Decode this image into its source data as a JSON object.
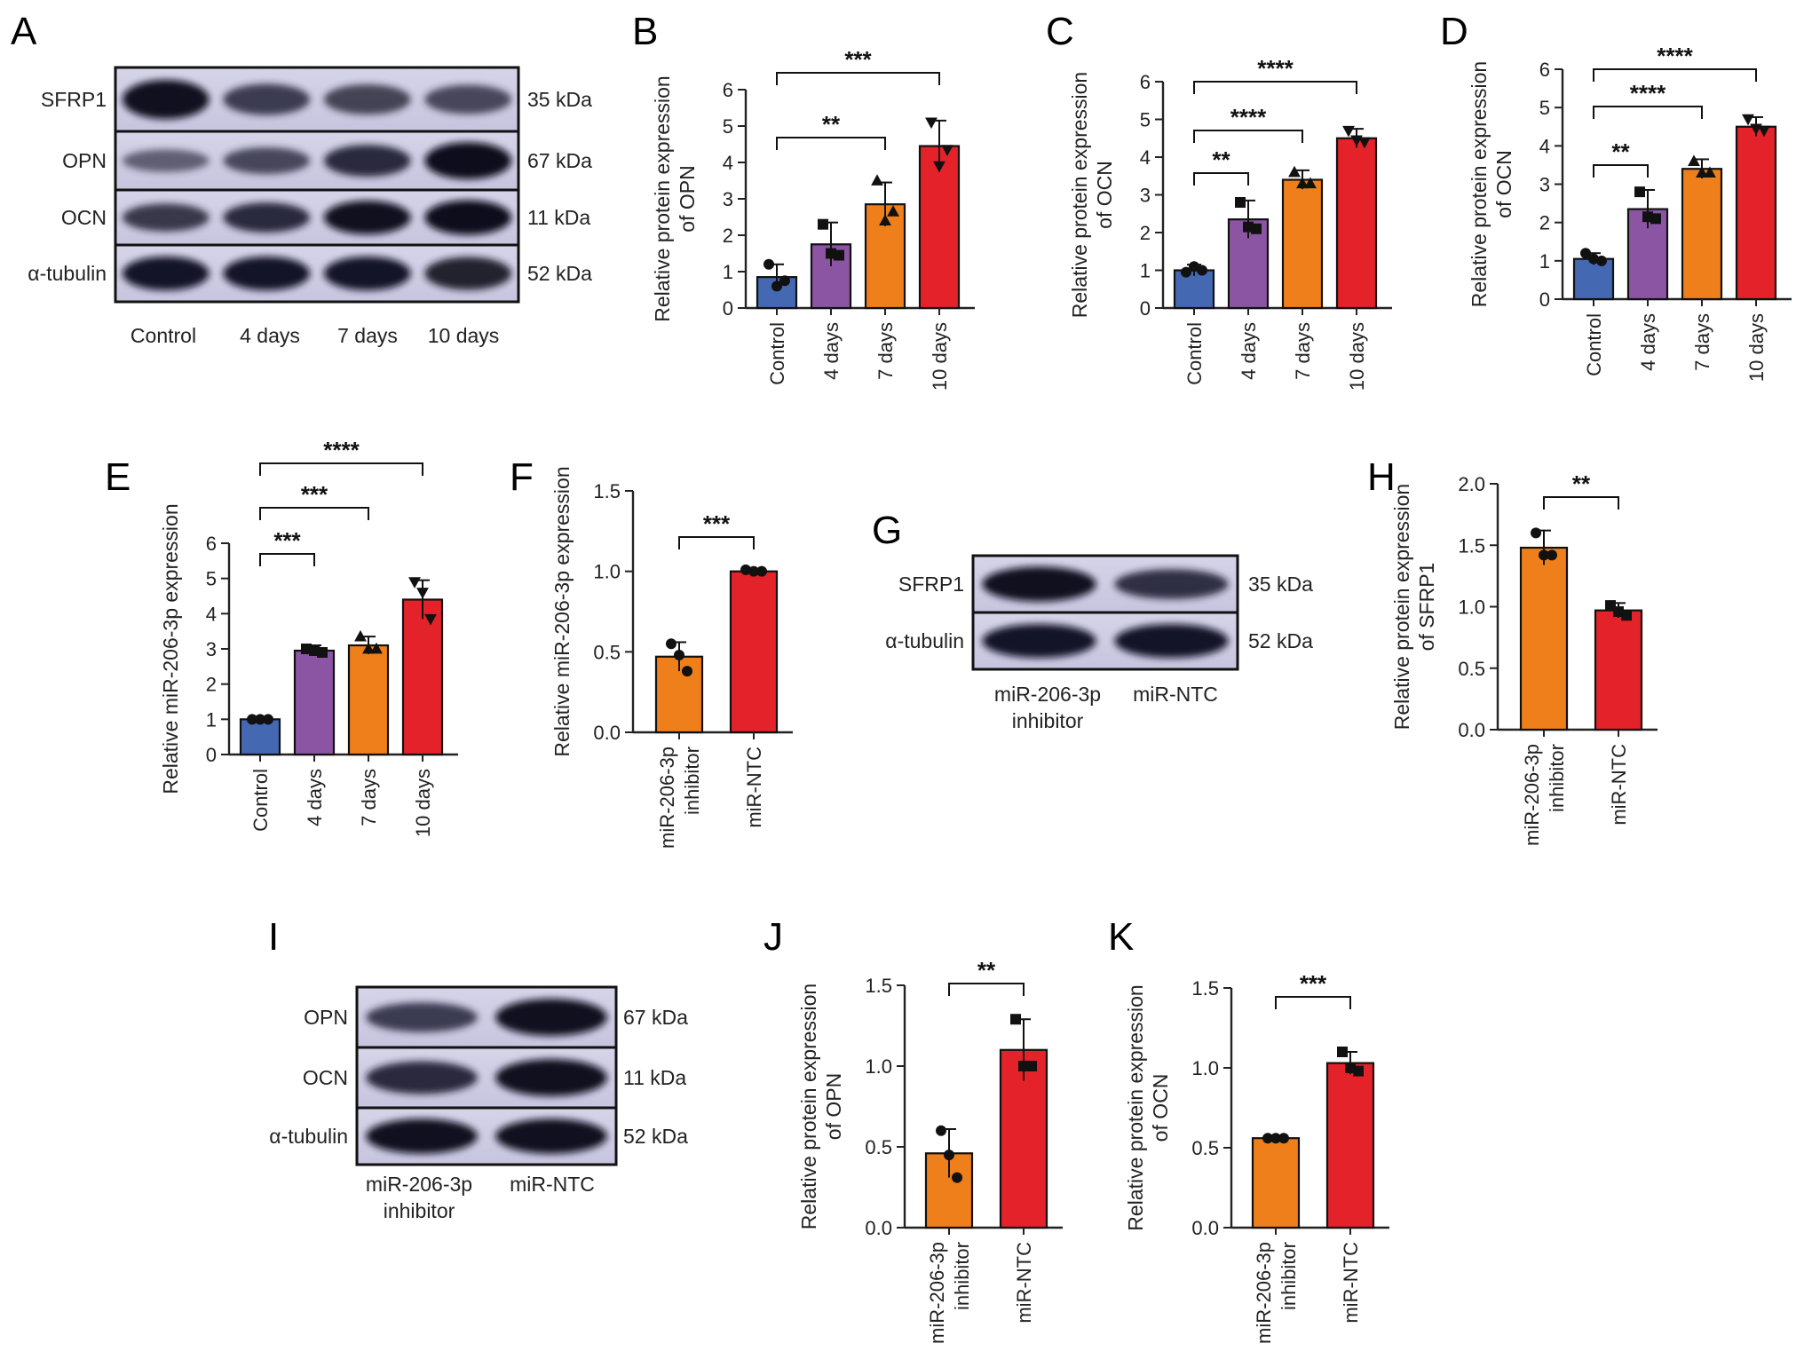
{
  "colors": {
    "Control": "#4468b2",
    "4 days": "#8c55a3",
    "7 days": "#ef7f1a",
    "10 days": "#e4222a",
    "miR-206-3p inhibitor": "#ef7f1a",
    "miR-NTC": "#e4222a"
  },
  "panels": {
    "A": "A",
    "B": "B",
    "C": "C",
    "D": "D",
    "E": "E",
    "F": "F",
    "G": "G",
    "H": "H",
    "I": "I",
    "J": "J",
    "K": "K"
  },
  "blots": [
    {
      "panel": "A",
      "rows": [
        {
          "label": "SFRP1",
          "kda": "35 kDa",
          "intensity": [
            0.95,
            0.6,
            0.55,
            0.5
          ]
        },
        {
          "label": "OPN",
          "kda": "67 kDa",
          "intensity": [
            0.3,
            0.5,
            0.75,
            1.0
          ]
        },
        {
          "label": "OCN",
          "kda": "11 kDa",
          "intensity": [
            0.65,
            0.75,
            0.95,
            1.0
          ]
        },
        {
          "label": "α-tubulin",
          "kda": "52 kDa",
          "intensity": [
            0.9,
            0.9,
            0.9,
            0.85
          ]
        }
      ],
      "lanes": [
        [
          "Control"
        ],
        [
          "4 days"
        ],
        [
          "7 days"
        ],
        [
          "10 days"
        ]
      ]
    },
    {
      "panel": "G",
      "rows": [
        {
          "label": "SFRP1",
          "kda": "35 kDa",
          "intensity": [
            0.95,
            0.7
          ]
        },
        {
          "label": "α-tubulin",
          "kda": "52 kDa",
          "intensity": [
            0.9,
            0.9
          ]
        }
      ],
      "lanes": [
        [
          "miR-206-3p",
          "inhibitor"
        ],
        [
          "miR-NTC"
        ]
      ]
    },
    {
      "panel": "I",
      "rows": [
        {
          "label": "OPN",
          "kda": "67 kDa",
          "intensity": [
            0.6,
            0.95
          ]
        },
        {
          "label": "OCN",
          "kda": "11 kDa",
          "intensity": [
            0.75,
            0.95
          ]
        },
        {
          "label": "α-tubulin",
          "kda": "52 kDa",
          "intensity": [
            0.95,
            0.95
          ]
        }
      ],
      "lanes": [
        [
          "miR-206-3p",
          "inhibitor"
        ],
        [
          "miR-NTC"
        ]
      ]
    }
  ],
  "chart_data": [
    {
      "panel": "B",
      "type": "bar",
      "categories": [
        "Control",
        "4 days",
        "7 days",
        "10 days"
      ],
      "values": [
        0.85,
        1.75,
        2.85,
        4.45
      ],
      "errors": [
        0.35,
        0.6,
        0.6,
        0.7
      ],
      "points": [
        [
          1.2,
          0.6,
          0.75
        ],
        [
          2.3,
          1.5,
          1.45
        ],
        [
          3.5,
          2.4,
          2.65
        ],
        [
          5.1,
          3.9,
          4.35
        ]
      ],
      "xlabel": "",
      "ylabel": [
        "Relative protein expression",
        "of OPN"
      ],
      "ylim": [
        0,
        6
      ],
      "yticks": [
        "0",
        "1",
        "2",
        "3",
        "4",
        "5",
        "6"
      ],
      "markers": [
        "circle",
        "square",
        "triangle",
        "triangle-down"
      ],
      "comparisons": [
        {
          "from": 0,
          "to": 2,
          "label": "**"
        },
        {
          "from": 0,
          "to": 3,
          "label": "***"
        }
      ]
    },
    {
      "panel": "C",
      "type": "bar",
      "categories": [
        "Control",
        "4 days",
        "7 days",
        "10 days"
      ],
      "values": [
        1.0,
        2.35,
        3.4,
        4.5
      ],
      "errors": [
        0.15,
        0.5,
        0.25,
        0.25
      ],
      "points": [
        [
          0.95,
          1.1,
          1.0
        ],
        [
          2.8,
          2.15,
          2.1
        ],
        [
          3.6,
          3.3,
          3.3
        ],
        [
          4.7,
          4.45,
          4.4
        ]
      ],
      "xlabel": "",
      "ylabel": [
        "Relative protein expression",
        "of OCN"
      ],
      "ylim": [
        0,
        6
      ],
      "yticks": [
        "0",
        "1",
        "2",
        "3",
        "4",
        "5",
        "6"
      ],
      "markers": [
        "circle",
        "square",
        "triangle",
        "triangle-down"
      ],
      "comparisons": [
        {
          "from": 0,
          "to": 1,
          "label": "**"
        },
        {
          "from": 0,
          "to": 2,
          "label": "****"
        },
        {
          "from": 0,
          "to": 3,
          "label": "****"
        }
      ]
    },
    {
      "panel": "D",
      "type": "bar",
      "categories": [
        "Control",
        "4 days",
        "7 days",
        "10 days"
      ],
      "values": [
        1.05,
        2.35,
        3.4,
        4.5
      ],
      "errors": [
        0.15,
        0.5,
        0.25,
        0.25
      ],
      "points": [
        [
          1.2,
          1.05,
          1.0
        ],
        [
          2.8,
          2.15,
          2.1
        ],
        [
          3.6,
          3.3,
          3.3
        ],
        [
          4.7,
          4.45,
          4.4
        ]
      ],
      "xlabel": "",
      "ylabel": [
        "Relative protein expression",
        "of OCN"
      ],
      "ylim": [
        0,
        6
      ],
      "yticks": [
        "0",
        "1",
        "2",
        "3",
        "4",
        "5",
        "6"
      ],
      "markers": [
        "circle",
        "square",
        "triangle",
        "triangle-down"
      ],
      "comparisons": [
        {
          "from": 0,
          "to": 1,
          "label": "**"
        },
        {
          "from": 0,
          "to": 2,
          "label": "****"
        },
        {
          "from": 0,
          "to": 3,
          "label": "****"
        }
      ]
    },
    {
      "panel": "E",
      "type": "bar",
      "categories": [
        "Control",
        "4 days",
        "7 days",
        "10 days"
      ],
      "values": [
        1.0,
        2.95,
        3.1,
        4.4
      ],
      "errors": [
        0.05,
        0.15,
        0.25,
        0.55
      ],
      "points": [
        [
          1.0,
          1.0,
          1.0
        ],
        [
          3.0,
          2.95,
          2.9
        ],
        [
          3.35,
          3.0,
          3.0
        ],
        [
          4.9,
          4.6,
          3.85
        ]
      ],
      "xlabel": "",
      "ylabel": [
        "Relative miR-206-3p expression"
      ],
      "ylim": [
        0,
        6
      ],
      "yticks": [
        "0",
        "1",
        "2",
        "3",
        "4",
        "5",
        "6"
      ],
      "markers": [
        "circle",
        "square",
        "triangle",
        "triangle-down"
      ],
      "comparisons": [
        {
          "from": 0,
          "to": 1,
          "label": "***"
        },
        {
          "from": 0,
          "to": 2,
          "label": "***"
        },
        {
          "from": 0,
          "to": 3,
          "label": "****"
        }
      ]
    },
    {
      "panel": "F",
      "type": "bar",
      "categories": [
        [
          "miR-206-3p",
          "inhibitor"
        ],
        [
          "miR-NTC"
        ]
      ],
      "values": [
        0.47,
        1.0
      ],
      "errors": [
        0.09,
        0.01
      ],
      "points": [
        [
          0.55,
          0.48,
          0.38
        ],
        [
          1.01,
          1.0,
          1.0
        ]
      ],
      "xlabel": "",
      "ylabel": [
        "Relative miR-206-3p expression"
      ],
      "ylim": [
        0,
        1.5
      ],
      "yticks": [
        "0.0",
        "0.5",
        "1.0",
        "1.5"
      ],
      "markers": [
        "circle",
        "circle"
      ],
      "comparisons": [
        {
          "from": 0,
          "to": 1,
          "label": "***"
        }
      ]
    },
    {
      "panel": "H",
      "type": "bar",
      "categories": [
        [
          "miR-206-3p",
          "inhibitor"
        ],
        [
          "miR-NTC"
        ]
      ],
      "values": [
        1.48,
        0.97
      ],
      "errors": [
        0.14,
        0.06
      ],
      "points": [
        [
          1.6,
          1.42,
          1.42
        ],
        [
          1.01,
          0.96,
          0.93
        ]
      ],
      "xlabel": "",
      "ylabel": [
        "Relative protein expression",
        "of SFRP1"
      ],
      "ylim": [
        0,
        2.0
      ],
      "yticks": [
        "0.0",
        "0.5",
        "1.0",
        "1.5",
        "2.0"
      ],
      "markers": [
        "circle",
        "square"
      ],
      "comparisons": [
        {
          "from": 0,
          "to": 1,
          "label": "**"
        }
      ]
    },
    {
      "panel": "J",
      "type": "bar",
      "categories": [
        [
          "miR-206-3p",
          "inhibitor"
        ],
        [
          "miR-NTC"
        ]
      ],
      "values": [
        0.46,
        1.1
      ],
      "errors": [
        0.15,
        0.19
      ],
      "points": [
        [
          0.6,
          0.45,
          0.31
        ],
        [
          1.29,
          1.0,
          1.0
        ]
      ],
      "xlabel": "",
      "ylabel": [
        "Relative protein expression",
        "of OPN"
      ],
      "ylim": [
        0,
        1.5
      ],
      "yticks": [
        "0.0",
        "0.5",
        "1.0",
        "1.5"
      ],
      "markers": [
        "circle",
        "square"
      ],
      "comparisons": [
        {
          "from": 0,
          "to": 1,
          "label": "**"
        }
      ]
    },
    {
      "panel": "K",
      "type": "bar",
      "categories": [
        [
          "miR-206-3p",
          "inhibitor"
        ],
        [
          "miR-NTC"
        ]
      ],
      "values": [
        0.56,
        1.03
      ],
      "errors": [
        0.01,
        0.07
      ],
      "points": [
        [
          0.56,
          0.56,
          0.56
        ],
        [
          1.1,
          1.0,
          0.98
        ]
      ],
      "xlabel": "",
      "ylabel": [
        "Relative protein expression",
        "of OCN"
      ],
      "ylim": [
        0,
        1.5
      ],
      "yticks": [
        "0.0",
        "0.5",
        "1.0",
        "1.5"
      ],
      "markers": [
        "circle",
        "square"
      ],
      "comparisons": [
        {
          "from": 0,
          "to": 1,
          "label": "***"
        }
      ]
    }
  ]
}
